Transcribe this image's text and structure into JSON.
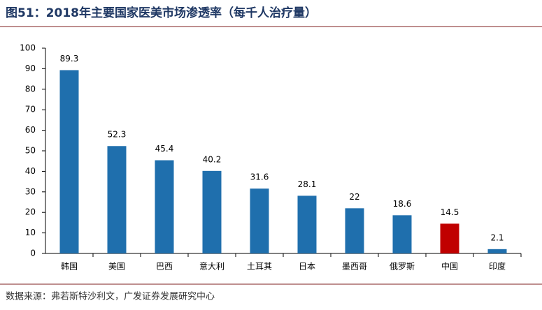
{
  "chart_data": {
    "type": "bar",
    "title": "图51：2018年主要国家医美市场渗透率（每千人治疗量）",
    "categories": [
      "韩国",
      "美国",
      "巴西",
      "意大利",
      "土耳其",
      "日本",
      "墨西哥",
      "俄罗斯",
      "中国",
      "印度"
    ],
    "values": [
      89.3,
      52.3,
      45.4,
      40.2,
      31.6,
      28.1,
      22,
      18.6,
      14.5,
      2.1
    ],
    "colors": [
      "#1f6fad",
      "#1f6fad",
      "#1f6fad",
      "#1f6fad",
      "#1f6fad",
      "#1f6fad",
      "#1f6fad",
      "#1f6fad",
      "#c00000",
      "#1f6fad"
    ],
    "ylim": [
      0,
      100
    ],
    "yticks": [
      0,
      10,
      20,
      30,
      40,
      50,
      60,
      70,
      80,
      90,
      100
    ],
    "grid": false,
    "source": "数据来源：弗若斯特沙利文，广发证券发展研究中心"
  }
}
